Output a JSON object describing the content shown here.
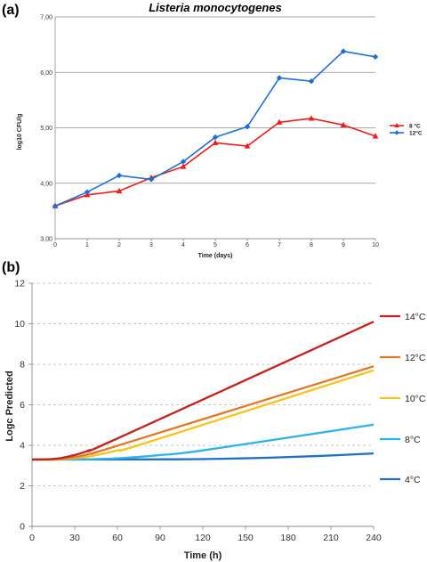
{
  "chart_data": [
    {
      "panel_label": "(a)",
      "type": "line",
      "title": "Listeria monocytogenes",
      "xlabel": "Time (days)",
      "ylabel": "log10 CFU/g",
      "x": [
        0,
        1,
        2,
        3,
        4,
        5,
        6,
        7,
        8,
        9,
        10
      ],
      "xlim": [
        0,
        10
      ],
      "ylim": [
        3.0,
        7.0
      ],
      "x_ticks": [
        "0",
        "1",
        "2",
        "3",
        "4",
        "5",
        "6",
        "7",
        "8",
        "9",
        "10"
      ],
      "y_ticks": [
        {
          "value": 3.0,
          "label": "3,00"
        },
        {
          "value": 4.0,
          "label": "4,00"
        },
        {
          "value": 5.0,
          "label": "5,00"
        },
        {
          "value": 6.0,
          "label": "6,00"
        },
        {
          "value": 7.0,
          "label": "7,00"
        }
      ],
      "grid": "horizontal",
      "legend_position": "right",
      "series": [
        {
          "name": "8 °C",
          "color": "#ee1c1c",
          "marker": "triangle",
          "values": [
            3.59,
            3.79,
            3.86,
            4.1,
            4.3,
            4.73,
            4.67,
            5.1,
            5.17,
            5.05,
            4.85
          ]
        },
        {
          "name": "12°C",
          "color": "#1e6fd0",
          "marker": "diamond",
          "values": [
            3.59,
            3.84,
            4.14,
            4.07,
            4.39,
            4.83,
            5.02,
            5.9,
            5.84,
            6.38,
            6.28
          ]
        }
      ]
    },
    {
      "panel_label": "(b)",
      "type": "line",
      "title": "",
      "xlabel": "Time (h)",
      "ylabel": "Logc Predicted",
      "xlim": [
        0,
        240
      ],
      "ylim": [
        0,
        12
      ],
      "x_ticks": [
        "0",
        "30",
        "60",
        "90",
        "120",
        "150",
        "180",
        "210",
        "240"
      ],
      "y_ticks": [
        "0",
        "2",
        "4",
        "6",
        "8",
        "10",
        "12"
      ],
      "grid": "horizontal dashed",
      "legend_position": "right",
      "series": [
        {
          "name": "14°C",
          "color": "#c0241c",
          "x": [
            0,
            10,
            20,
            30,
            40,
            60,
            240
          ],
          "values": [
            3.3,
            3.31,
            3.37,
            3.52,
            3.75,
            4.34,
            10.1
          ]
        },
        {
          "name": "12°C",
          "color": "#e0782a",
          "x": [
            0,
            15,
            30,
            45,
            60,
            240
          ],
          "values": [
            3.3,
            3.31,
            3.42,
            3.66,
            3.98,
            7.9
          ]
        },
        {
          "name": "10°C",
          "color": "#f7c21c",
          "x": [
            0,
            20,
            40,
            60,
            80,
            240
          ],
          "values": [
            3.3,
            3.31,
            3.45,
            3.75,
            4.12,
            7.7
          ]
        },
        {
          "name": "8°C",
          "color": "#2db3ea",
          "x": [
            0,
            30,
            60,
            90,
            120,
            240
          ],
          "values": [
            3.3,
            3.3,
            3.36,
            3.52,
            3.75,
            5.02
          ]
        },
        {
          "name": "4°C",
          "color": "#1f6fc4",
          "x": [
            0,
            100,
            150,
            200,
            240
          ],
          "values": [
            3.3,
            3.31,
            3.36,
            3.47,
            3.6
          ]
        }
      ]
    }
  ]
}
